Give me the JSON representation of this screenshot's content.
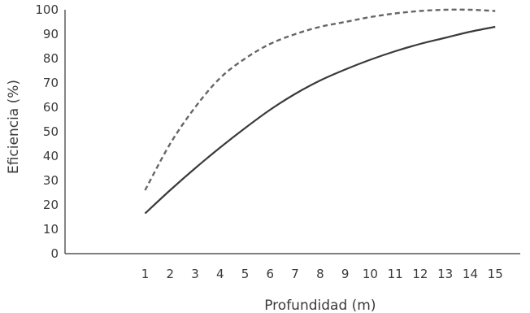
{
  "chart_data": {
    "type": "line",
    "title": "",
    "xlabel": "Profundidad (m)",
    "ylabel": "Eficiencia (%)",
    "x": [
      1,
      2,
      3,
      4,
      5,
      6,
      7,
      8,
      9,
      10,
      11,
      12,
      13,
      14,
      15
    ],
    "xlim": [
      -2.2,
      16
    ],
    "ylim": [
      0,
      100
    ],
    "yticks": [
      0,
      10,
      20,
      30,
      40,
      50,
      60,
      70,
      80,
      90,
      100
    ],
    "grid": false,
    "series": [
      {
        "style": "dashed",
        "color": "#666666",
        "values": [
          26,
          45,
          60,
          72,
          80,
          86,
          90,
          93,
          95,
          97,
          98.5,
          99.5,
          100,
          100,
          99.5
        ]
      },
      {
        "style": "solid",
        "color": "#3a3a3a",
        "values": [
          16.5,
          26,
          35,
          43.5,
          51.5,
          59,
          65.5,
          71,
          75.5,
          79.5,
          83,
          86,
          88.5,
          91,
          93
        ]
      }
    ]
  }
}
